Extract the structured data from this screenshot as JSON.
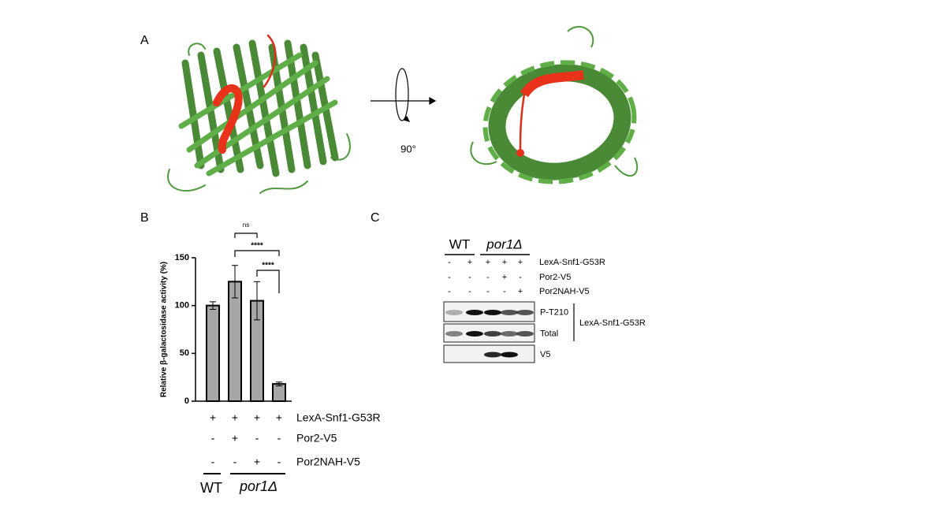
{
  "panel_labels": [
    "A",
    "B",
    "C"
  ],
  "panel_a": {
    "rotation": "90°"
  },
  "chart_data": {
    "type": "bar",
    "categories": [
      null,
      null,
      null,
      null
    ],
    "values": [
      100,
      125,
      105,
      18
    ],
    "errors": [
      4,
      17,
      20,
      2
    ],
    "color": "#a6a6a6",
    "ylabel": "Relative β-galactosidase activity (%)",
    "ylim": [
      0,
      150
    ],
    "yticks": [
      0,
      50,
      100,
      150
    ],
    "significance": [
      "ns",
      "****",
      "****"
    ],
    "conditions": [
      {
        "name": "LexA-Snf1-G53R",
        "signs": [
          "+",
          "+",
          "+",
          "+"
        ]
      },
      {
        "name": "Por2-V5",
        "signs": [
          "-",
          "+",
          "-",
          "-"
        ]
      },
      {
        "name": "Por2NAH-V5",
        "signs": [
          "-",
          "-",
          "+",
          "-"
        ]
      }
    ],
    "groups": [
      "WT",
      "por1Δ"
    ]
  },
  "panel_c": {
    "groups": [
      "WT",
      "por1Δ"
    ],
    "conditions": [
      {
        "name": "LexA-Snf1-G53R",
        "signs": [
          "-",
          "+",
          "+",
          "+",
          "+"
        ]
      },
      {
        "name": "Por2-V5",
        "signs": [
          "-",
          "-",
          "-",
          "+",
          "-"
        ]
      },
      {
        "name": "Por2NAH-V5",
        "signs": [
          "-",
          "-",
          "-",
          "-",
          "+"
        ]
      }
    ],
    "blots": [
      "P-T210",
      "Total",
      "V5"
    ],
    "bracket_label": "LexA-Snf1-G53R"
  }
}
